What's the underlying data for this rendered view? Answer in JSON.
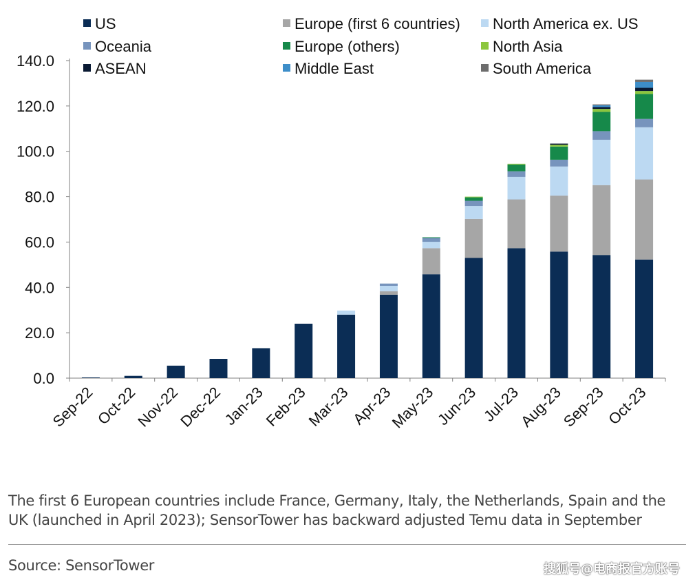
{
  "chart_data": {
    "type": "bar",
    "stacked": true,
    "title": "",
    "xlabel": "",
    "ylabel": "",
    "ylim": [
      0,
      140
    ],
    "yticks": [
      "0.0",
      "20.0",
      "40.0",
      "60.0",
      "80.0",
      "100.0",
      "120.0",
      "140.0"
    ],
    "grid": false,
    "legend_position": "top",
    "categories": [
      "Sep-22",
      "Oct-22",
      "Nov-22",
      "Dec-22",
      "Jan-23",
      "Feb-23",
      "Mar-23",
      "Apr-23",
      "May-23",
      "Jun-23",
      "Jul-23",
      "Aug-23",
      "Sep-23",
      "Oct-23"
    ],
    "series": [
      {
        "name": "US",
        "color": "#0b2d55",
        "values": [
          0.3,
          1.0,
          5.5,
          8.5,
          13.2,
          24.0,
          28.0,
          36.8,
          45.8,
          53.0,
          57.3,
          55.8,
          54.3,
          52.3
        ]
      },
      {
        "name": "Europe (first 6 countries)",
        "color": "#a6a6a6",
        "values": [
          0,
          0,
          0,
          0,
          0,
          0,
          0,
          1.5,
          11.5,
          17.2,
          21.5,
          24.7,
          30.8,
          35.3
        ]
      },
      {
        "name": "North America ex. US",
        "color": "#bcd9f2",
        "values": [
          0,
          0,
          0,
          0,
          0,
          0,
          1.8,
          2.4,
          2.8,
          5.7,
          9.9,
          12.8,
          20.0,
          23.0
        ]
      },
      {
        "name": "Oceania",
        "color": "#7794bd",
        "values": [
          0,
          0,
          0,
          0,
          0,
          0,
          0,
          1.0,
          1.7,
          2.3,
          2.5,
          3.0,
          3.8,
          3.7
        ]
      },
      {
        "name": "Europe (others)",
        "color": "#16894a",
        "values": [
          0,
          0,
          0,
          0,
          0,
          0,
          0,
          0,
          0.3,
          1.5,
          3.0,
          5.8,
          8.5,
          11.0
        ]
      },
      {
        "name": "North Asia",
        "color": "#8cc63e",
        "values": [
          0,
          0,
          0,
          0,
          0,
          0,
          0,
          0,
          0,
          0.3,
          0.3,
          0.8,
          1.3,
          1.3
        ]
      },
      {
        "name": "ASEAN",
        "color": "#0a1a33",
        "values": [
          0,
          0,
          0,
          0,
          0,
          0,
          0,
          0,
          0,
          0,
          0,
          0.5,
          0.8,
          1.4
        ]
      },
      {
        "name": "Middle East",
        "color": "#3d8ec9",
        "values": [
          0,
          0,
          0,
          0,
          0,
          0,
          0,
          0,
          0,
          0,
          0,
          0,
          0.8,
          2.6
        ]
      },
      {
        "name": "South America",
        "color": "#6d6d6d",
        "values": [
          0,
          0,
          0,
          0,
          0,
          0,
          0,
          0,
          0,
          0,
          0,
          0,
          0.4,
          1.0
        ]
      }
    ]
  },
  "footer": {
    "note": "The first 6 European countries include France, Germany, Italy, the Netherlands, Spain and the UK (launched in April 2023); SensorTower has backward adjusted Temu data in September",
    "source": "Source: SensorTower",
    "watermark": "搜狐号@电商报官方账号"
  }
}
